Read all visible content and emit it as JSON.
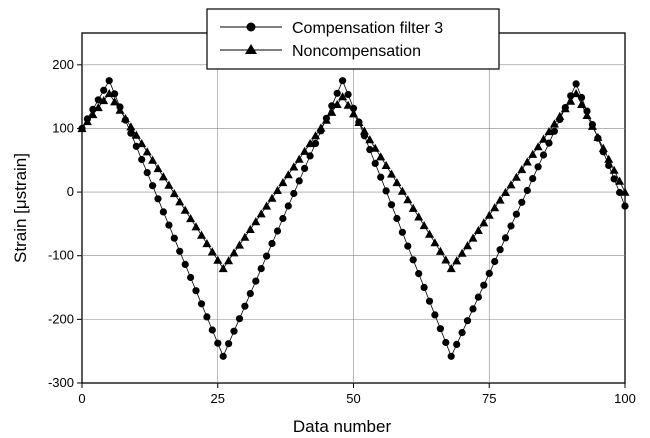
{
  "chart_data": {
    "type": "line",
    "title": "",
    "xlabel": "Data number",
    "ylabel": "Strain [μstrain]",
    "xlim": [
      0,
      100
    ],
    "ylim": [
      -300,
      250
    ],
    "x_ticks": [
      0,
      25,
      50,
      75,
      100
    ],
    "y_ticks": [
      -300,
      -200,
      -100,
      0,
      100,
      200
    ],
    "x_tick_labels": [
      "0",
      "25",
      "50",
      "75",
      "100"
    ],
    "y_tick_labels": [
      "-300",
      "-200",
      "-100",
      "0",
      "100",
      "200"
    ],
    "grid": true,
    "legend_position": "top-center",
    "series": [
      {
        "name": "Compensation filter 3",
        "marker": "circle",
        "color": "#000000",
        "anchors": [
          [
            0,
            100
          ],
          [
            5,
            175
          ],
          [
            26,
            -258
          ],
          [
            48,
            175
          ],
          [
            68,
            -258
          ],
          [
            91,
            170
          ],
          [
            100,
            -22
          ]
        ]
      },
      {
        "name": "Noncompensation",
        "marker": "triangle",
        "color": "#000000",
        "anchors": [
          [
            0,
            100
          ],
          [
            5,
            155
          ],
          [
            26,
            -120
          ],
          [
            48,
            150
          ],
          [
            68,
            -120
          ],
          [
            91,
            155
          ],
          [
            100,
            0
          ]
        ]
      }
    ]
  }
}
